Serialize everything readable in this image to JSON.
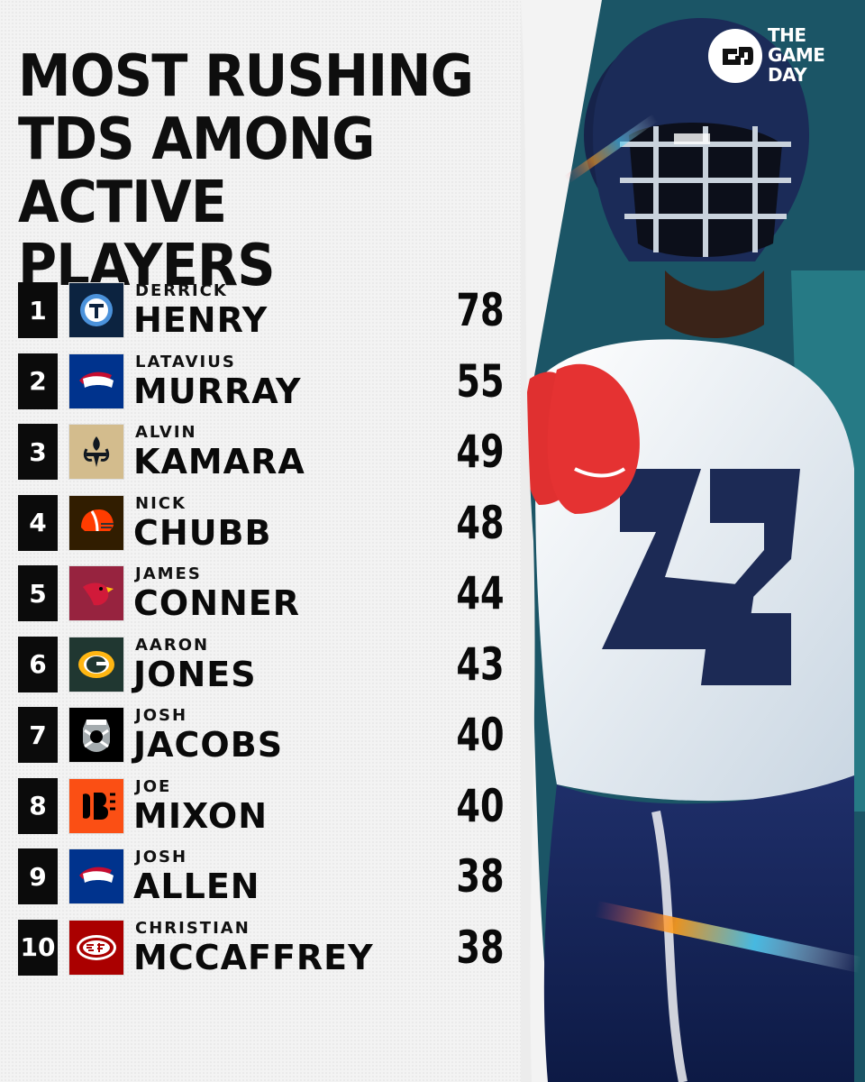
{
  "title": {
    "line1": "MOST RUSHING",
    "line2": "TDS AMONG",
    "line3": "ACTIVE PLAYERS"
  },
  "brand": {
    "line1": "THE",
    "line2": "GAME",
    "line3": "DAY"
  },
  "players": [
    {
      "rank": "1",
      "first": "DERRICK",
      "last": "HENRY",
      "tds": "78",
      "team_icon": "titans-logo-icon",
      "logo_bg": "#0c2340"
    },
    {
      "rank": "2",
      "first": "LATAVIUS",
      "last": "MURRAY",
      "tds": "55",
      "team_icon": "bills-logo-icon",
      "logo_bg": "#00338d"
    },
    {
      "rank": "3",
      "first": "ALVIN",
      "last": "KAMARA",
      "tds": "49",
      "team_icon": "saints-logo-icon",
      "logo_bg": "#d3bc8d"
    },
    {
      "rank": "4",
      "first": "NICK",
      "last": "CHUBB",
      "tds": "48",
      "team_icon": "browns-logo-icon",
      "logo_bg": "#311d00"
    },
    {
      "rank": "5",
      "first": "JAMES",
      "last": "CONNER",
      "tds": "44",
      "team_icon": "cardinals-logo-icon",
      "logo_bg": "#97233f"
    },
    {
      "rank": "6",
      "first": "AARON",
      "last": "JONES",
      "tds": "43",
      "team_icon": "packers-logo-icon",
      "logo_bg": "#203731"
    },
    {
      "rank": "7",
      "first": "JOSH",
      "last": "JACOBS",
      "tds": "40",
      "team_icon": "raiders-logo-icon",
      "logo_bg": "#000000"
    },
    {
      "rank": "8",
      "first": "JOE",
      "last": "MIXON",
      "tds": "40",
      "team_icon": "bengals-logo-icon",
      "logo_bg": "#fb4f14"
    },
    {
      "rank": "9",
      "first": "JOSH",
      "last": "ALLEN",
      "tds": "38",
      "team_icon": "bills-logo-icon",
      "logo_bg": "#00338d"
    },
    {
      "rank": "10",
      "first": "CHRISTIAN",
      "last": "MCCAFFREY",
      "tds": "38",
      "team_icon": "49ers-logo-icon",
      "logo_bg": "#aa0000"
    }
  ]
}
